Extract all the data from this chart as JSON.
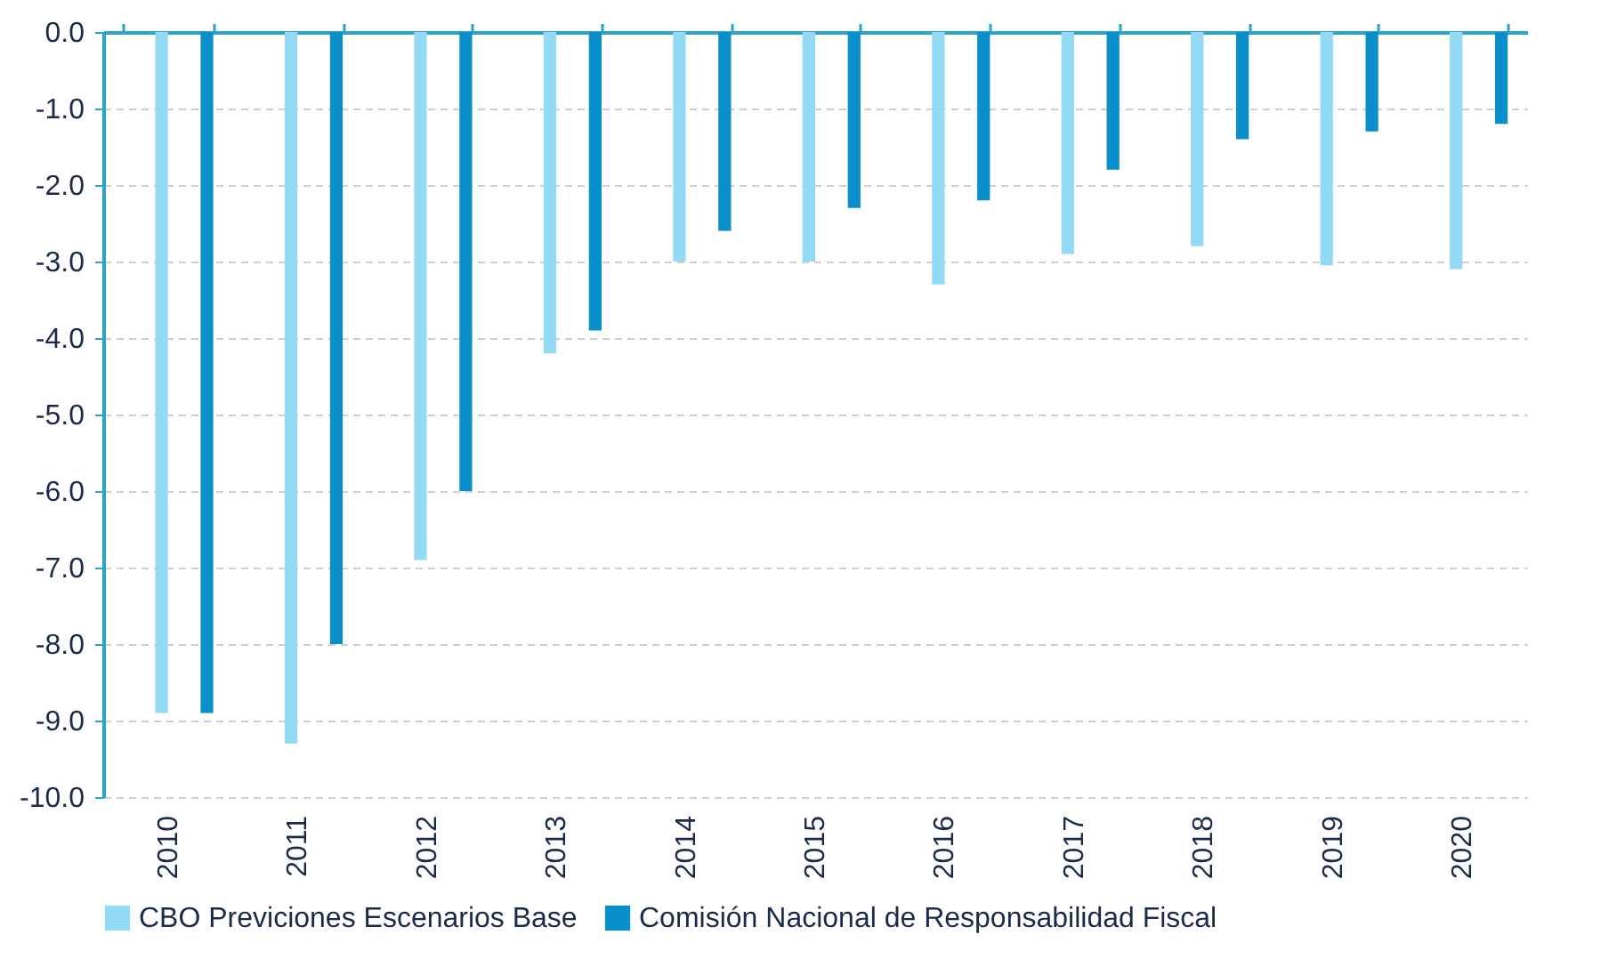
{
  "chart_data": {
    "type": "bar",
    "categories": [
      "2010",
      "2011",
      "2012",
      "2013",
      "2014",
      "2015",
      "2016",
      "2017",
      "2018",
      "2019",
      "2020"
    ],
    "series": [
      {
        "name": "CBO Previciones Escenarios Base",
        "color": "#93dbf4",
        "values": [
          -8.9,
          -9.3,
          -6.9,
          -4.2,
          -3.0,
          -3.0,
          -3.3,
          -2.9,
          -2.8,
          -3.05,
          -3.1
        ]
      },
      {
        "name": "Comisión Nacional de Responsabilidad Fiscal",
        "color": "#0a8fcb",
        "values": [
          -8.9,
          -8.0,
          -6.0,
          -3.9,
          -2.6,
          -2.3,
          -2.2,
          -1.8,
          -1.4,
          -1.3,
          -1.2
        ]
      }
    ],
    "ylim": [
      -10,
      0
    ],
    "yticks": [
      {
        "value": 0,
        "label": "0.0"
      },
      {
        "value": -1,
        "label": "-1.0"
      },
      {
        "value": -2,
        "label": "-2.0"
      },
      {
        "value": -3,
        "label": "-3.0"
      },
      {
        "value": -4,
        "label": "-4.0"
      },
      {
        "value": -5,
        "label": "-5.0"
      },
      {
        "value": -6,
        "label": "-6.0"
      },
      {
        "value": -7,
        "label": "-7.0"
      },
      {
        "value": -8,
        "label": "-8.0"
      },
      {
        "value": -9,
        "label": "-9.0"
      },
      {
        "value": -10,
        "label": "-10.0"
      }
    ],
    "grid": "y",
    "legend": "bottom"
  }
}
